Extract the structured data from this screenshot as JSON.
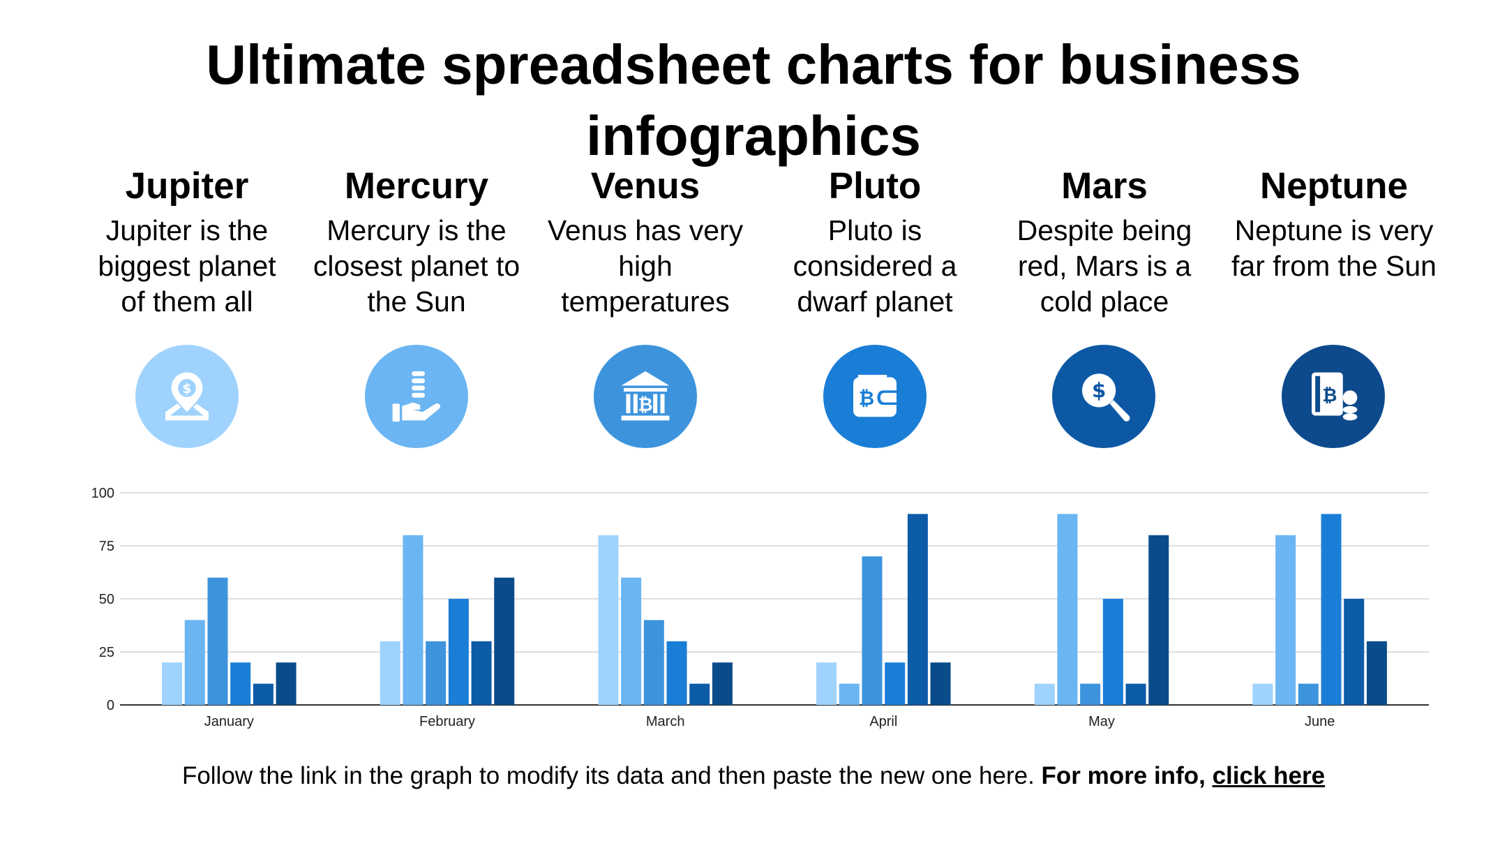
{
  "title": "Ultimate spreadsheet charts for business infographics",
  "planets": [
    {
      "name": "Jupiter",
      "desc": "Jupiter is the biggest planet of them all",
      "icon": "location-dollar-icon",
      "color": "#9fd3fd"
    },
    {
      "name": "Mercury",
      "desc": "Mercury is the closest planet to the Sun",
      "icon": "hand-coins-icon",
      "color": "#6ab5f2"
    },
    {
      "name": "Venus",
      "desc": "Venus has very high temperatures",
      "icon": "bank-bitcoin-icon",
      "color": "#3d94dd"
    },
    {
      "name": "Pluto",
      "desc": "Pluto is considered a dwarf planet",
      "icon": "wallet-bitcoin-icon",
      "color": "#1a7ed7"
    },
    {
      "name": "Mars",
      "desc": "Despite being red, Mars is a cold place",
      "icon": "search-dollar-icon",
      "color": "#0c58a5"
    },
    {
      "name": "Neptune",
      "desc": "Neptune is very far from the Sun",
      "icon": "book-bitcoin-coins-icon",
      "color": "#0d4a8c"
    }
  ],
  "chart_data": {
    "type": "bar",
    "categories": [
      "January",
      "February",
      "March",
      "April",
      "May",
      "June"
    ],
    "series": [
      {
        "values": [
          20,
          30,
          80,
          20,
          10,
          10
        ],
        "color": "#9fd3fd"
      },
      {
        "values": [
          40,
          80,
          60,
          10,
          90,
          80
        ],
        "color": "#6ab5f2"
      },
      {
        "values": [
          60,
          30,
          40,
          70,
          10,
          10
        ],
        "color": "#3d94dd"
      },
      {
        "values": [
          20,
          50,
          30,
          20,
          50,
          90
        ],
        "color": "#1a7ed7"
      },
      {
        "values": [
          10,
          30,
          10,
          90,
          10,
          50
        ],
        "color": "#0c5ca8"
      },
      {
        "values": [
          20,
          60,
          20,
          20,
          80,
          30
        ],
        "color": "#0a4c8a"
      }
    ],
    "yticks": [
      0,
      25,
      50,
      75,
      100
    ],
    "ylim": [
      0,
      100
    ],
    "grid": true,
    "legend": "none"
  },
  "footer": {
    "text": "Follow the link in the graph to modify its data and then paste the new one here.",
    "bold": "For more info,",
    "link": "click here"
  }
}
